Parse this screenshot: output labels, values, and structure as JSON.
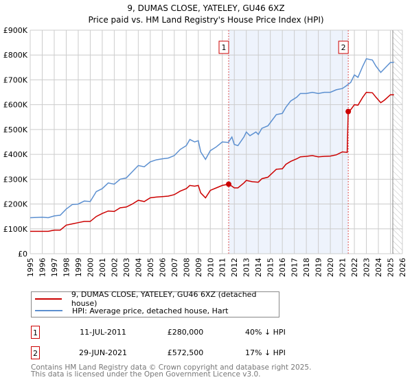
{
  "chart_data": {
    "type": "line",
    "title": "9, DUMAS CLOSE, YATELEY, GU46 6XZ",
    "subtitle": "Price paid vs. HM Land Registry's House Price Index (HPI)",
    "xlim": [
      1995,
      2026
    ],
    "ylim": [
      0,
      900000
    ],
    "x_ticks": [
      "1995",
      "1996",
      "1997",
      "1998",
      "1999",
      "2000",
      "2001",
      "2002",
      "2003",
      "2004",
      "2005",
      "2006",
      "2007",
      "2008",
      "2009",
      "2010",
      "2011",
      "2012",
      "2013",
      "2014",
      "2015",
      "2016",
      "2017",
      "2018",
      "2019",
      "2020",
      "2021",
      "2022",
      "2023",
      "2024",
      "2025",
      "2026"
    ],
    "y_ticks": [
      {
        "v": 0,
        "label": "£0"
      },
      {
        "v": 100000,
        "label": "£100K"
      },
      {
        "v": 200000,
        "label": "£200K"
      },
      {
        "v": 300000,
        "label": "£300K"
      },
      {
        "v": 400000,
        "label": "£400K"
      },
      {
        "v": 500000,
        "label": "£500K"
      },
      {
        "v": 600000,
        "label": "£600K"
      },
      {
        "v": 700000,
        "label": "£700K"
      },
      {
        "v": 800000,
        "label": "£800K"
      },
      {
        "v": 900000,
        "label": "£900K"
      }
    ],
    "grid": true,
    "shaded_range": [
      2011.53,
      2021.49
    ],
    "forecast_hatch_from": 2025.2,
    "series": [
      {
        "name": "9, DUMAS CLOSE, YATELEY, GU46 6XZ (detached house)",
        "color": "#cc0000",
        "x": [
          1995,
          1996.5,
          1997,
          1997.5,
          1998,
          1998.5,
          1999,
          1999.5,
          2000,
          2000.5,
          2001,
          2001.5,
          2002,
          2002.5,
          2003,
          2003.5,
          2004,
          2004.5,
          2005,
          2005.5,
          2006,
          2006.5,
          2007,
          2007.5,
          2008,
          2008.3,
          2008.7,
          2009,
          2009.2,
          2009.6,
          2010,
          2010.5,
          2011,
          2011.53,
          2011.8,
          2012,
          2012.3,
          2012.8,
          2013,
          2013.5,
          2014,
          2014.3,
          2014.8,
          2015.5,
          2016,
          2016.3,
          2016.7,
          2017.2,
          2017.5,
          2018,
          2018.5,
          2019,
          2019.5,
          2020,
          2020.5,
          2021,
          2021.4,
          2021.49,
          2021.7,
          2022,
          2022.3,
          2022.7,
          2023,
          2023.5,
          2023.8,
          2024.2,
          2024.5,
          2025,
          2025.3
        ],
        "y": [
          90,
          90,
          95,
          95,
          115,
          120,
          125,
          130,
          130,
          150,
          162,
          172,
          170,
          185,
          188,
          200,
          215,
          210,
          225,
          228,
          230,
          232,
          238,
          252,
          262,
          275,
          272,
          275,
          245,
          225,
          255,
          265,
          275,
          280,
          272,
          265,
          265,
          285,
          295,
          290,
          288,
          302,
          308,
          340,
          342,
          360,
          372,
          382,
          390,
          392,
          395,
          390,
          392,
          393,
          398,
          410,
          408,
          572.5,
          580,
          600,
          598,
          630,
          650,
          648,
          630,
          608,
          618,
          640,
          640
        ]
      },
      {
        "name": "HPI: Average price, detached house, Hart",
        "color": "#5b8fd0",
        "x": [
          1995,
          1996,
          1996.5,
          1997,
          1997.5,
          1998,
          1998.5,
          1999,
          1999.5,
          2000,
          2000.5,
          2001,
          2001.5,
          2002,
          2002.5,
          2003,
          2003.5,
          2004,
          2004.5,
          2005,
          2005.5,
          2006,
          2006.5,
          2007,
          2007.5,
          2008,
          2008.3,
          2008.7,
          2009,
          2009.2,
          2009.6,
          2010,
          2010.5,
          2011,
          2011.5,
          2011.8,
          2012,
          2012.3,
          2012.8,
          2013,
          2013.3,
          2013.8,
          2014,
          2014.3,
          2014.8,
          2015.5,
          2016,
          2016.3,
          2016.7,
          2017.2,
          2017.5,
          2018,
          2018.5,
          2019,
          2019.5,
          2020,
          2020.5,
          2021,
          2021.3,
          2021.7,
          2022,
          2022.3,
          2022.7,
          2023,
          2023.5,
          2023.8,
          2024.2,
          2024.5,
          2025,
          2025.3
        ],
        "y": [
          145,
          147,
          145,
          152,
          155,
          180,
          198,
          200,
          212,
          210,
          250,
          262,
          285,
          280,
          300,
          305,
          330,
          355,
          350,
          370,
          378,
          382,
          385,
          395,
          420,
          435,
          460,
          450,
          455,
          410,
          380,
          415,
          430,
          450,
          448,
          470,
          440,
          435,
          470,
          490,
          475,
          490,
          480,
          505,
          515,
          560,
          565,
          590,
          615,
          630,
          645,
          645,
          650,
          645,
          650,
          650,
          660,
          665,
          675,
          690,
          720,
          710,
          755,
          785,
          780,
          755,
          730,
          745,
          770,
          770
        ]
      }
    ],
    "sales": [
      {
        "id": "1",
        "x": 2011.53,
        "y": 280
      },
      {
        "id": "2",
        "x": 2021.49,
        "y": 572.5
      }
    ],
    "y_unit": "thousands GBP"
  },
  "legend": {
    "items": [
      "9, DUMAS CLOSE, YATELEY, GU46 6XZ (detached house)",
      "HPI: Average price, detached house, Hart"
    ]
  },
  "transactions": [
    {
      "id": "1",
      "date": "11-JUL-2011",
      "price": "£280,000",
      "hpi": "40% ↓ HPI"
    },
    {
      "id": "2",
      "date": "29-JUN-2021",
      "price": "£572,500",
      "hpi": "17% ↓ HPI"
    }
  ],
  "footer": {
    "line1": "Contains HM Land Registry data © Crown copyright and database right 2025.",
    "line2": "This data is licensed under the Open Government Licence v3.0."
  }
}
